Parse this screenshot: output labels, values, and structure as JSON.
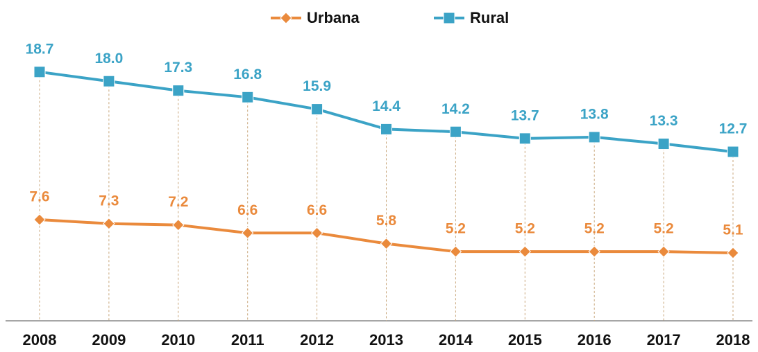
{
  "chart_data": {
    "type": "line",
    "categories": [
      "2008",
      "2009",
      "2010",
      "2011",
      "2012",
      "2013",
      "2014",
      "2015",
      "2016",
      "2017",
      "2018"
    ],
    "series": [
      {
        "name": "Urbana",
        "color": "#ea8a3c",
        "marker": "diamond",
        "values": [
          7.6,
          7.3,
          7.2,
          6.6,
          6.6,
          5.8,
          5.2,
          5.2,
          5.2,
          5.2,
          5.1
        ],
        "value_labels": [
          "7.6",
          "7.3",
          "7.2",
          "6.6",
          "6.6",
          "5.8",
          "5.2",
          "5.2",
          "5.2",
          "5.2",
          "5.1"
        ]
      },
      {
        "name": "Rural",
        "color": "#3ba3c6",
        "marker": "square",
        "values": [
          18.7,
          18.0,
          17.3,
          16.8,
          15.9,
          14.4,
          14.2,
          13.7,
          13.8,
          13.3,
          12.7
        ],
        "value_labels": [
          "18.7",
          "18.0",
          "17.3",
          "16.8",
          "15.9",
          "14.4",
          "14.2",
          "13.7",
          "13.8",
          "13.3",
          "12.7"
        ]
      }
    ],
    "ylim": [
      0,
      24
    ],
    "legend": "top"
  }
}
